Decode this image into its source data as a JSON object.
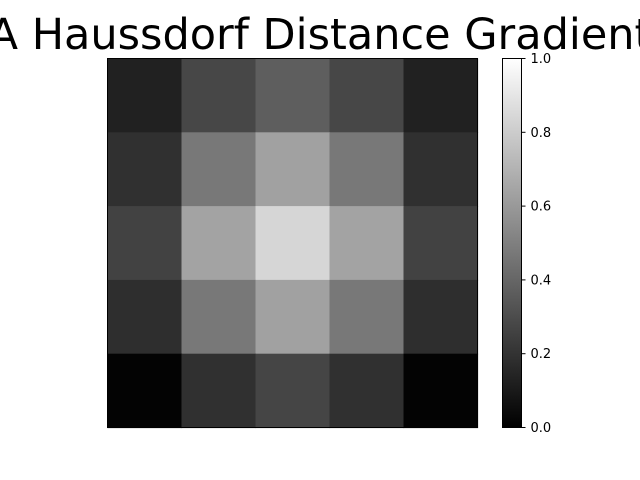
{
  "chart_data": {
    "type": "heatmap",
    "title": "A Haussdorf Distance Gradient",
    "colormap": "gray",
    "rows": 5,
    "cols": 5,
    "values": [
      [
        0.13,
        0.28,
        0.37,
        0.28,
        0.13
      ],
      [
        0.19,
        0.47,
        0.63,
        0.47,
        0.19
      ],
      [
        0.26,
        0.64,
        0.84,
        0.64,
        0.26
      ],
      [
        0.18,
        0.47,
        0.63,
        0.47,
        0.18
      ],
      [
        0.01,
        0.19,
        0.27,
        0.19,
        0.01
      ]
    ],
    "colorbar": {
      "range": [
        0.0,
        1.0
      ],
      "ticks": [
        0.0,
        0.2,
        0.4,
        0.6,
        0.8,
        1.0
      ],
      "tick_labels": [
        "0.0",
        "0.2",
        "0.4",
        "0.6",
        "0.8",
        "1.0"
      ]
    },
    "xticks": [],
    "yticks": []
  }
}
